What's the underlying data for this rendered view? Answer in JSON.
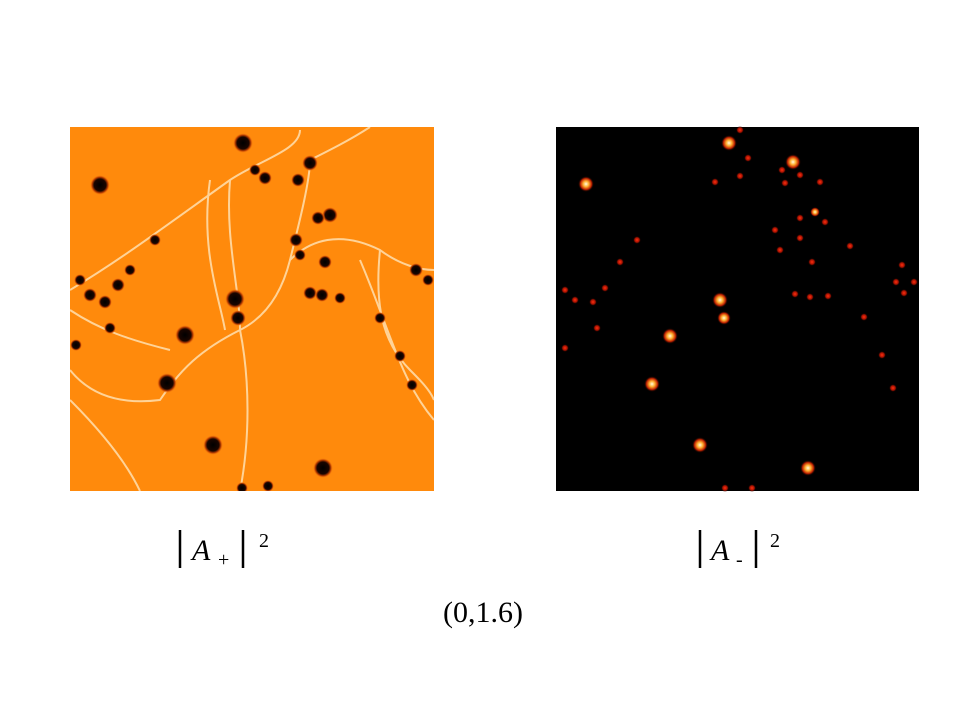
{
  "panels": [
    {
      "symbol": "A",
      "subscript": "+",
      "superscript": "2"
    },
    {
      "symbol": "A",
      "subscript": "-",
      "superscript": "2"
    }
  ],
  "caption": "(0,1.6)"
}
